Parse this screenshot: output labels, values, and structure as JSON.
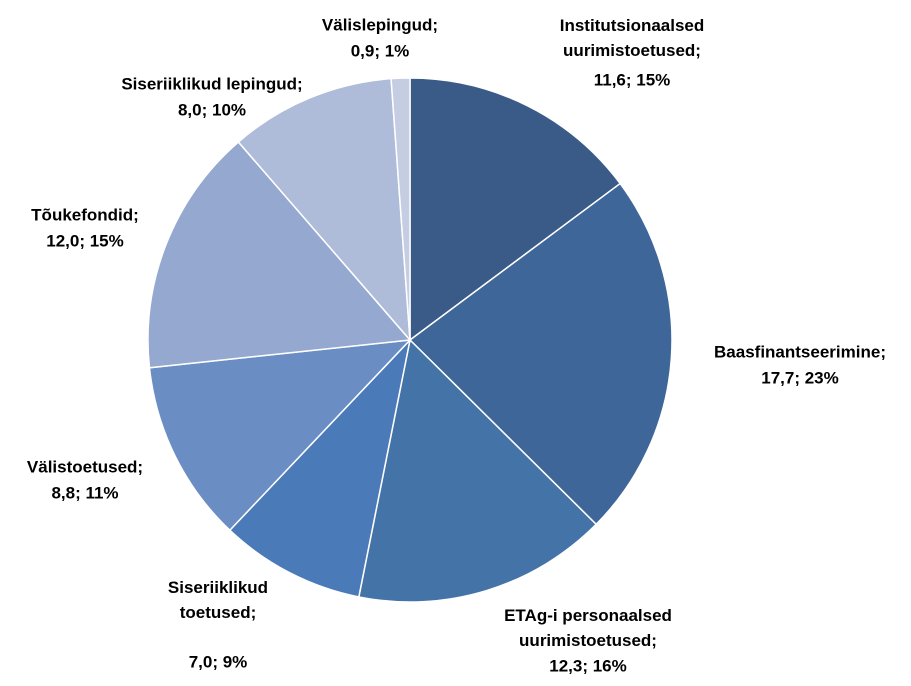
{
  "chart_data": {
    "type": "pie",
    "categories": [
      "Institutsionaalsed\nuurimistoetused;",
      "Baasfinantseerimine;",
      "ETAg-i personaalsed\nuurimistoetused;",
      "Siseriiklikud\ntoetused;",
      "Välistoetused;",
      "Tõukefondid;",
      "Siseriiklikud lepingud;",
      "Välislepingud;"
    ],
    "values": [
      11.6,
      17.7,
      12.3,
      7.0,
      8.8,
      12.0,
      8.0,
      0.9
    ],
    "value_labels": [
      "11,6; 15%",
      "17,7; 23%",
      "12,3; 16%",
      "7,0; 9%",
      "8,8; 11%",
      "12,0; 15%",
      "8,0; 10%",
      "0,9; 1%"
    ],
    "colors": [
      "#3a5a87",
      "#3e6699",
      "#4473a8",
      "#4a7ab8",
      "#6a8ec4",
      "#95a9d0",
      "#aebcd9",
      "#c5cde3"
    ]
  }
}
